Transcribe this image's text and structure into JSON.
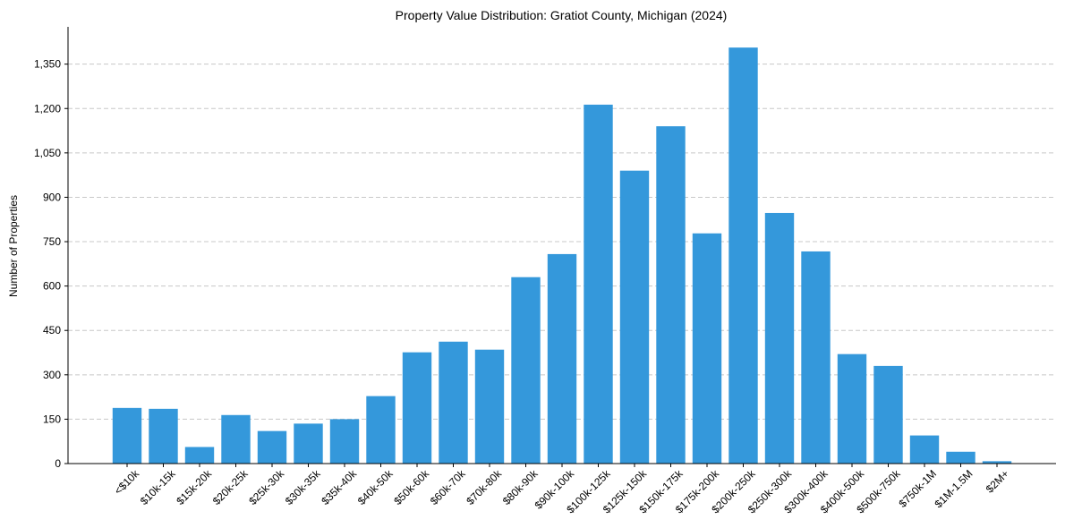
{
  "chart_data": {
    "type": "bar",
    "title": "Property Value Distribution: Gratiot County, Michigan (2024)",
    "xlabel": "",
    "ylabel": "Number of Properties",
    "categories": [
      "<$10k",
      "$10k-15k",
      "$15k-20k",
      "$20k-25k",
      "$25k-30k",
      "$30k-35k",
      "$35k-40k",
      "$40k-50k",
      "$50k-60k",
      "$60k-70k",
      "$70k-80k",
      "$80k-90k",
      "$90k-100k",
      "$100k-125k",
      "$125k-150k",
      "$150k-175k",
      "$175k-200k",
      "$200k-250k",
      "$250k-300k",
      "$300k-400k",
      "$400k-500k",
      "$500k-750k",
      "$750k-1M",
      "$1M-1.5M",
      "$2M+"
    ],
    "values": [
      188,
      185,
      56,
      164,
      110,
      135,
      150,
      228,
      376,
      412,
      385,
      630,
      708,
      1213,
      990,
      1140,
      778,
      1406,
      847,
      717,
      370,
      330,
      95,
      40,
      8
    ],
    "yticks": [
      0,
      150,
      300,
      450,
      600,
      750,
      900,
      1050,
      1200,
      1350
    ],
    "ytick_labels": [
      "0",
      "150",
      "300",
      "450",
      "600",
      "750",
      "900",
      "1,050",
      "1,200",
      "1,350"
    ],
    "ylim": [
      0,
      1476
    ],
    "grid": "y-dashed",
    "bar_color": "#3498db"
  }
}
